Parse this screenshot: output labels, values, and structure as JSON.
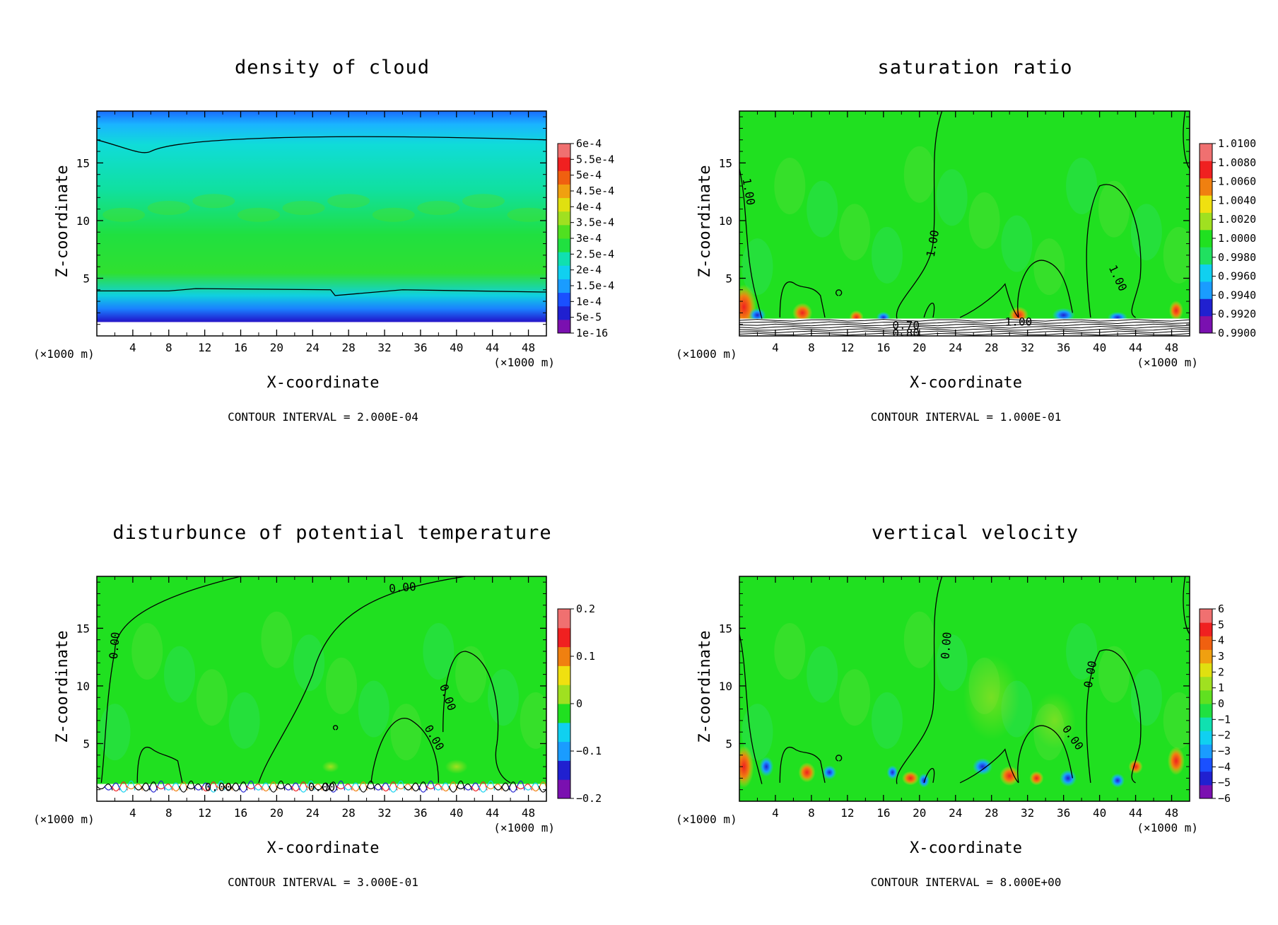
{
  "chart_data": [
    {
      "type": "heatmap",
      "title": "density of cloud",
      "xlabel": "X-coordinate",
      "ylabel": "Z-coordinate",
      "x_unit_left": "(×1000 m)",
      "x_unit_right": "(×1000 m)",
      "xlim": [
        0,
        50
      ],
      "ylim": [
        0,
        19.5
      ],
      "x_ticks": [
        "4",
        "8",
        "12",
        "16",
        "20",
        "24",
        "28",
        "32",
        "36",
        "40",
        "44",
        "48"
      ],
      "y_ticks": [
        "5",
        "10",
        "15"
      ],
      "colorbar_labels": [
        "6e-4",
        "5.5e-4",
        "5e-4",
        "4.5e-4",
        "4e-4",
        "3.5e-4",
        "3e-4",
        "2.5e-4",
        "2e-4",
        "1.5e-4",
        "1e-4",
        "5e-5",
        "1e-16"
      ],
      "contour_interval": "CONTOUR INTERVAL = 2.000E-04",
      "field": "cloud",
      "contour_labels": []
    },
    {
      "type": "heatmap",
      "title": "saturation ratio",
      "xlabel": "X-coordinate",
      "ylabel": "Z-coordinate",
      "x_unit_left": "(×1000 m)",
      "x_unit_right": "(×1000 m)",
      "xlim": [
        0,
        50
      ],
      "ylim": [
        0,
        19.5
      ],
      "x_ticks": [
        "4",
        "8",
        "12",
        "16",
        "20",
        "24",
        "28",
        "32",
        "36",
        "40",
        "44",
        "48"
      ],
      "y_ticks": [
        "5",
        "10",
        "15"
      ],
      "colorbar_labels": [
        "1.0100",
        "1.0080",
        "1.0060",
        "1.0040",
        "1.0020",
        "1.0000",
        "0.9980",
        "0.9960",
        "0.9940",
        "0.9920",
        "0.9900"
      ],
      "contour_interval": "CONTOUR INTERVAL = 1.000E-01",
      "field": "sat",
      "contour_labels": [
        {
          "text": "1.00",
          "x": 1,
          "y": 12.5,
          "rot": 80
        },
        {
          "text": "1.00",
          "x": 21.5,
          "y": 8.0,
          "rot": -80
        },
        {
          "text": "1.00",
          "x": 42,
          "y": 5.0,
          "rot": 65
        },
        {
          "text": "1.00",
          "x": 31,
          "y": 1.2,
          "rot": 0
        },
        {
          "text": "0.70",
          "x": 18.5,
          "y": 0.9,
          "rot": 0
        },
        {
          "text": "0.80",
          "x": 18.5,
          "y": 0.2,
          "rot": 0
        }
      ]
    },
    {
      "type": "heatmap",
      "title": "disturbunce of potential temperature",
      "xlabel": "X-coordinate",
      "ylabel": "Z-coordinate",
      "x_unit_left": "(×1000 m)",
      "x_unit_right": "(×1000 m)",
      "xlim": [
        0,
        50
      ],
      "ylim": [
        0,
        19.5
      ],
      "x_ticks": [
        "4",
        "8",
        "12",
        "16",
        "20",
        "24",
        "28",
        "32",
        "36",
        "40",
        "44",
        "48"
      ],
      "y_ticks": [
        "5",
        "10",
        "15"
      ],
      "colorbar_labels": [
        "0.2",
        "0.1",
        "0",
        "−0.1",
        "−0.2"
      ],
      "contour_interval": "CONTOUR INTERVAL = 3.000E-01",
      "field": "theta",
      "contour_labels": [
        {
          "text": "0.00",
          "x": 34,
          "y": 18.5,
          "rot": -5
        },
        {
          "text": "0.00",
          "x": 2,
          "y": 13.5,
          "rot": -85
        },
        {
          "text": "0.00",
          "x": 39,
          "y": 9.0,
          "rot": 70
        },
        {
          "text": "0.00",
          "x": 37.5,
          "y": 5.5,
          "rot": 60
        },
        {
          "text": "0.00",
          "x": 13.5,
          "y": 1.2,
          "rot": 0
        },
        {
          "text": "0.00",
          "x": 25,
          "y": 1.2,
          "rot": 0
        }
      ]
    },
    {
      "type": "heatmap",
      "title": "vertical velocity",
      "xlabel": "X-coordinate",
      "ylabel": "Z-coordinate",
      "x_unit_left": "(×1000 m)",
      "x_unit_right": "(×1000 m)",
      "xlim": [
        0,
        50
      ],
      "ylim": [
        0,
        19.5
      ],
      "x_ticks": [
        "4",
        "8",
        "12",
        "16",
        "20",
        "24",
        "28",
        "32",
        "36",
        "40",
        "44",
        "48"
      ],
      "y_ticks": [
        "5",
        "10",
        "15"
      ],
      "colorbar_labels": [
        "6",
        "5",
        "4",
        "3",
        "2",
        "1",
        "0",
        "−1",
        "−2",
        "−3",
        "−4",
        "−5",
        "−6"
      ],
      "contour_interval": "CONTOUR INTERVAL = 8.000E+00",
      "field": "w",
      "contour_labels": [
        {
          "text": "0.00",
          "x": 23,
          "y": 13.5,
          "rot": -85
        },
        {
          "text": "0.00",
          "x": 39,
          "y": 11.0,
          "rot": -80
        },
        {
          "text": "0.00",
          "x": 37,
          "y": 5.5,
          "rot": 55
        }
      ]
    }
  ],
  "colors": {
    "cloud": [
      "#7a10b0",
      "#2020d0",
      "#1a50ff",
      "#1a9cff",
      "#10d0f0",
      "#10e0b0",
      "#20e040",
      "#50e020",
      "#a0e020",
      "#e0e010",
      "#f0a010",
      "#f06010",
      "#f02020",
      "#f07070"
    ],
    "sat": [
      "#7a10b0",
      "#2020d0",
      "#1a9cff",
      "#10d0f0",
      "#20e060",
      "#20e020",
      "#a0e020",
      "#f0e010",
      "#f08010",
      "#f02020",
      "#f07070"
    ],
    "theta": [
      "#7a10b0",
      "#2020d0",
      "#1a9cff",
      "#10d0f0",
      "#20e020",
      "#a0e020",
      "#f0e010",
      "#f08010",
      "#f02020",
      "#f07070"
    ],
    "w": [
      "#7a10b0",
      "#2020d0",
      "#1a50ff",
      "#1a9cff",
      "#10d0f0",
      "#10e0b0",
      "#20e040",
      "#60e020",
      "#a0e020",
      "#e0e010",
      "#f0a010",
      "#f06010",
      "#f02020",
      "#f07070"
    ]
  }
}
